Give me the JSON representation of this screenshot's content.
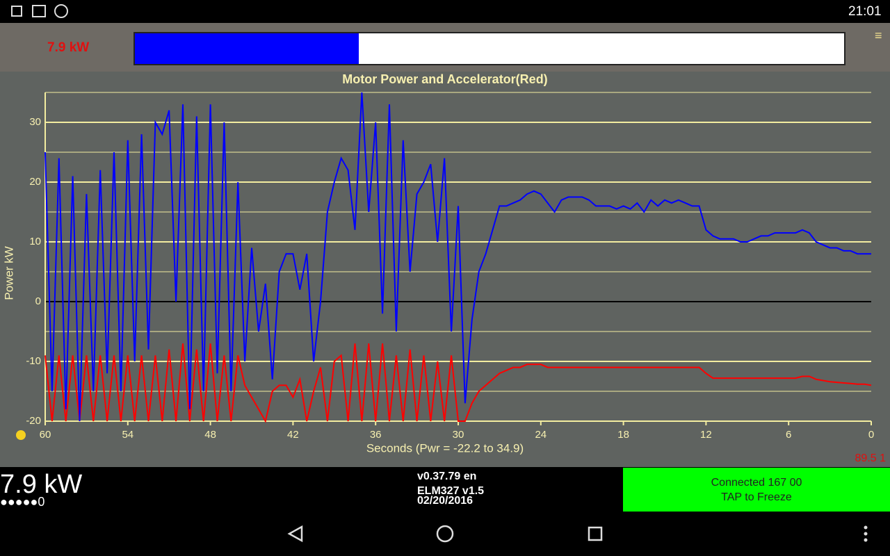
{
  "status_bar": {
    "time": "21:01"
  },
  "top_bar": {
    "label": "7.9 kW",
    "gauge_percent": 31.6
  },
  "chart_data": {
    "type": "line",
    "title": "Motor Power and Accelerator(Red)",
    "y_label": "Power  kW",
    "x_label": "Seconds (Pwr = -22.2 to 34.9)",
    "xlim": [
      60,
      0
    ],
    "xticks": [
      60,
      54,
      48,
      42,
      36,
      30,
      24,
      18,
      12,
      6,
      0
    ],
    "ylim": [
      -20,
      35
    ],
    "yticks": [
      -20,
      -10,
      0,
      10,
      20,
      30
    ],
    "minor_yticks": [
      -15,
      -5,
      5,
      15,
      25,
      35
    ],
    "grid": true,
    "x": [
      60,
      59.5,
      59,
      58.5,
      58,
      57.5,
      57,
      56.5,
      56,
      55.5,
      55,
      54.5,
      54,
      53.5,
      53,
      52.5,
      52,
      51.5,
      51,
      50.5,
      50,
      49.5,
      49,
      48.5,
      48,
      47.5,
      47,
      46.5,
      46,
      45.5,
      45,
      44.5,
      44,
      43.5,
      43,
      42.5,
      42,
      41.5,
      41,
      40.5,
      40,
      39.5,
      39,
      38.5,
      38,
      37.5,
      37,
      36.5,
      36,
      35.5,
      35,
      34.5,
      34,
      33.5,
      33,
      32.5,
      32,
      31.5,
      31,
      30.5,
      30,
      29.5,
      29,
      28.5,
      28,
      27.5,
      27,
      26.5,
      26,
      25.5,
      25,
      24.5,
      24,
      23.5,
      23,
      22.5,
      22,
      21.5,
      21,
      20.5,
      20,
      19.5,
      19,
      18.5,
      18,
      17.5,
      17,
      16.5,
      16,
      15.5,
      15,
      14.5,
      14,
      13.5,
      13,
      12.5,
      12,
      11.5,
      11,
      10.5,
      10,
      9.5,
      9,
      8.5,
      8,
      7.5,
      7,
      6.5,
      6,
      5.5,
      5,
      4.5,
      4,
      3.5,
      3,
      2.5,
      2,
      1.5,
      1,
      0.5,
      0
    ],
    "series": [
      {
        "name": "Power",
        "color": "#0000ff",
        "values": [
          25,
          -15,
          24,
          -18,
          21,
          -20,
          18,
          -15,
          22,
          -12,
          25,
          -15,
          27,
          -10,
          28,
          -8,
          30,
          28,
          32,
          0,
          33,
          -18,
          31,
          -15,
          33,
          -12,
          30,
          -15,
          20,
          -10,
          9,
          -5,
          3,
          -13,
          5,
          8,
          8,
          2,
          8,
          -10,
          0,
          15,
          20,
          24,
          22,
          12,
          35,
          15,
          30,
          -2,
          33,
          -5,
          27,
          5,
          18,
          20,
          23,
          10,
          24,
          -5,
          16,
          -17,
          -3,
          5,
          8,
          12,
          16,
          16,
          16.5,
          17,
          18,
          18.5,
          18,
          16.5,
          15,
          17,
          17.5,
          17.5,
          17.5,
          17,
          16,
          16,
          16,
          15.5,
          16,
          15.5,
          16.5,
          15,
          17,
          16,
          17,
          16.5,
          17,
          16.5,
          16,
          16,
          12,
          11,
          10.5,
          10.5,
          10.5,
          10,
          10,
          10.5,
          11,
          11,
          11.5,
          11.5,
          11.5,
          11.5,
          12,
          11.5,
          10,
          9.5,
          9,
          9,
          8.5,
          8.5,
          8,
          8,
          8
        ]
      },
      {
        "name": "Accelerator",
        "color": "#ff0000",
        "values": [
          -9,
          -20,
          -9,
          -20,
          -9,
          -20,
          -9,
          -20,
          -9,
          -20,
          -9,
          -20,
          -9,
          -20,
          -9,
          -20,
          -9,
          -20,
          -8,
          -20,
          -7,
          -20,
          -8,
          -20,
          -7,
          -20,
          -9,
          -20,
          -9,
          -14,
          -16,
          -18,
          -20,
          -15,
          -14,
          -14,
          -16,
          -13,
          -20,
          -15,
          -11,
          -20,
          -10,
          -9,
          -20,
          -7,
          -20,
          -7,
          -20,
          -7,
          -20,
          -9,
          -20,
          -8,
          -20,
          -9,
          -20,
          -10,
          -20,
          -9,
          -20,
          -20,
          -17,
          -15,
          -14,
          -13,
          -12,
          -11.5,
          -11,
          -11,
          -10.5,
          -10.5,
          -10.5,
          -11,
          -11,
          -11,
          -11,
          -11,
          -11,
          -11,
          -11,
          -11,
          -11,
          -11,
          -11,
          -11,
          -11,
          -11,
          -11,
          -11,
          -11,
          -11,
          -11,
          -11,
          -11,
          -11,
          -12,
          -12.8,
          -12.8,
          -12.8,
          -12.8,
          -12.8,
          -12.8,
          -12.8,
          -12.8,
          -12.8,
          -12.8,
          -12.8,
          -12.8,
          -12.8,
          -12.5,
          -12.5,
          -13,
          -13.2,
          -13.4,
          -13.5,
          -13.6,
          -13.7,
          -13.8,
          -13.8,
          -14
        ]
      }
    ]
  },
  "corner_value": "89.5 1",
  "bottom": {
    "power": "7.9 kW",
    "dots": "●●●●●0",
    "version": "v0.37.79 en",
    "adapter": "ELM327 v1.5",
    "date": "02/20/2016",
    "button_line1": "Connected 167 00",
    "button_line2": "TAP to Freeze"
  }
}
